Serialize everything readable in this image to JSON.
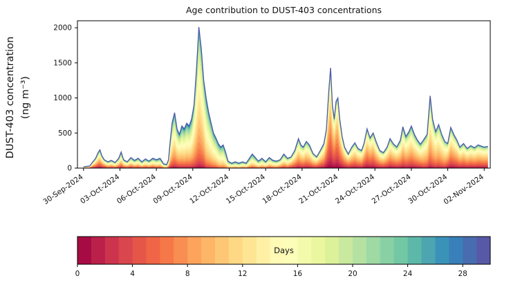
{
  "chart_data": {
    "type": "area",
    "variant": "stacked-area-by-age",
    "title": "Age contribution to DUST-403 concentrations",
    "ylabel_line1": "DUST-403 concentration",
    "ylabel_line2": "(ng m⁻³)",
    "ylim": [
      0,
      2100
    ],
    "y_ticks": [
      0,
      500,
      1000,
      1500,
      2000
    ],
    "xlim_days": [
      -0.5,
      33.5
    ],
    "x_axis_note": "days since 30-Sep-2024",
    "x_tick_days": [
      0,
      3,
      6,
      9,
      12,
      15,
      18,
      21,
      24,
      27,
      30,
      33
    ],
    "x_tick_labels": [
      "30-Sep-2024",
      "03-Oct-2024",
      "06-Oct-2024",
      "09-Oct-2024",
      "12-Oct-2024",
      "15-Oct-2024",
      "18-Oct-2024",
      "21-Oct-2024",
      "24-Oct-2024",
      "27-Oct-2024",
      "30-Oct-2024",
      "02-Nov-2024"
    ],
    "x": [
      0.0,
      0.5,
      1.0,
      1.2,
      1.35,
      1.5,
      1.7,
      2.0,
      2.3,
      2.6,
      2.9,
      3.1,
      3.3,
      3.6,
      3.9,
      4.2,
      4.5,
      4.8,
      5.1,
      5.4,
      5.7,
      6.0,
      6.3,
      6.6,
      6.85,
      7.0,
      7.15,
      7.3,
      7.5,
      7.7,
      7.9,
      8.1,
      8.3,
      8.5,
      8.7,
      8.9,
      9.1,
      9.3,
      9.5,
      9.7,
      9.9,
      10.1,
      10.3,
      10.5,
      10.7,
      10.9,
      11.1,
      11.3,
      11.5,
      11.7,
      11.9,
      12.2,
      12.5,
      12.8,
      13.1,
      13.4,
      13.7,
      13.9,
      14.1,
      14.4,
      14.7,
      15.0,
      15.3,
      15.6,
      15.9,
      16.2,
      16.5,
      16.8,
      17.1,
      17.4,
      17.7,
      17.9,
      18.1,
      18.35,
      18.6,
      18.9,
      19.2,
      19.5,
      19.8,
      20.0,
      20.2,
      20.35,
      20.5,
      20.65,
      20.8,
      20.95,
      21.1,
      21.3,
      21.5,
      21.8,
      22.1,
      22.35,
      22.6,
      22.9,
      23.1,
      23.35,
      23.6,
      23.85,
      24.1,
      24.4,
      24.7,
      25.0,
      25.25,
      25.5,
      25.8,
      26.1,
      26.3,
      26.55,
      26.8,
      27.0,
      27.25,
      27.5,
      27.75,
      28.0,
      28.3,
      28.55,
      28.75,
      29.0,
      29.25,
      29.5,
      29.75,
      30.0,
      30.25,
      30.5,
      30.75,
      31.0,
      31.3,
      31.6,
      31.9,
      32.2,
      32.5,
      32.65,
      33.0,
      33.3
    ],
    "total": [
      20,
      30,
      140,
      220,
      260,
      180,
      120,
      90,
      110,
      80,
      140,
      230,
      120,
      90,
      150,
      110,
      140,
      90,
      130,
      100,
      140,
      120,
      140,
      60,
      50,
      120,
      400,
      650,
      790,
      560,
      480,
      600,
      560,
      640,
      600,
      700,
      900,
      1400,
      2010,
      1700,
      1250,
      1000,
      800,
      650,
      500,
      430,
      350,
      300,
      330,
      230,
      100,
      70,
      90,
      70,
      90,
      70,
      150,
      200,
      160,
      100,
      140,
      90,
      150,
      110,
      100,
      120,
      200,
      140,
      160,
      250,
      420,
      330,
      300,
      380,
      330,
      210,
      160,
      250,
      350,
      550,
      1100,
      1430,
      900,
      700,
      950,
      1000,
      700,
      450,
      300,
      200,
      300,
      360,
      280,
      250,
      350,
      560,
      430,
      500,
      380,
      250,
      220,
      300,
      420,
      350,
      300,
      400,
      590,
      450,
      520,
      600,
      480,
      400,
      340,
      400,
      480,
      1030,
      700,
      520,
      620,
      480,
      380,
      350,
      580,
      480,
      400,
      300,
      350,
      280,
      320,
      290,
      330,
      320,
      300,
      310
    ],
    "age_bins": 30,
    "age_bin_width_days": 1,
    "age_mean": [
      10,
      10,
      10,
      10,
      10,
      10,
      10,
      12,
      12,
      12,
      12,
      12,
      12,
      12,
      12,
      13,
      13,
      13,
      13,
      13,
      13,
      14,
      14,
      14,
      14,
      13,
      13,
      13,
      13,
      13,
      13,
      14,
      14,
      14,
      14,
      14,
      13,
      13,
      13,
      13,
      13,
      15,
      15,
      15,
      15,
      15,
      16,
      16,
      16,
      16,
      16,
      16,
      16,
      16,
      15,
      15,
      15,
      15,
      15,
      15,
      15,
      14,
      14,
      14,
      14,
      13,
      13,
      13,
      11,
      11,
      11,
      11,
      11,
      11,
      11,
      11,
      10,
      10,
      10,
      8,
      8,
      8,
      8,
      8,
      8,
      8,
      9,
      9,
      9,
      9,
      10,
      10,
      10,
      10,
      9,
      9,
      9,
      9,
      10,
      10,
      10,
      10,
      10,
      10,
      10,
      11,
      11,
      11,
      11,
      11,
      11,
      11,
      11,
      12,
      12,
      12,
      12,
      12,
      12,
      12,
      12,
      10,
      10,
      10,
      10,
      10,
      10,
      10,
      10,
      10,
      10,
      10,
      10,
      10
    ],
    "age_sd": [
      8,
      8,
      8,
      8,
      8,
      8,
      8,
      8,
      8,
      8,
      8,
      8,
      8,
      8,
      8,
      8,
      8,
      8,
      8,
      8,
      8,
      8,
      8,
      8,
      8,
      7,
      7,
      7,
      7,
      7,
      7,
      7,
      7,
      7,
      7,
      7,
      6,
      6,
      6,
      6,
      6,
      6,
      6,
      6,
      6,
      6,
      6,
      6,
      6,
      6,
      6,
      7,
      7,
      7,
      7,
      7,
      7,
      7,
      7,
      7,
      7,
      7,
      7,
      7,
      7,
      7,
      7,
      7,
      7,
      7,
      7,
      7,
      7,
      7,
      7,
      7,
      7,
      7,
      7,
      7,
      7,
      7,
      7,
      7,
      7,
      7,
      7,
      7,
      7,
      7,
      7,
      7,
      7,
      7,
      7,
      7,
      7,
      7,
      7,
      7,
      7,
      7,
      7,
      7,
      7,
      7,
      7,
      7,
      7,
      7,
      7,
      7,
      7,
      6,
      6,
      6,
      6,
      6,
      6,
      6,
      6,
      7,
      7,
      7,
      7,
      7,
      7,
      7,
      7,
      7,
      7,
      7,
      7,
      7
    ],
    "colormap": [
      "#9e0142",
      "#d53e4f",
      "#f46d43",
      "#fdae61",
      "#fee08b",
      "#ffffbf",
      "#e6f598",
      "#abdda4",
      "#66c2a5",
      "#3288bd",
      "#5e4fa2"
    ],
    "envelope_color": "#4d5aa7",
    "axis_color": "#000000",
    "colorbar": {
      "label": "Days",
      "ticks": [
        0,
        4,
        8,
        12,
        16,
        20,
        24,
        28
      ],
      "range": [
        0,
        30
      ],
      "cells": 30
    }
  }
}
